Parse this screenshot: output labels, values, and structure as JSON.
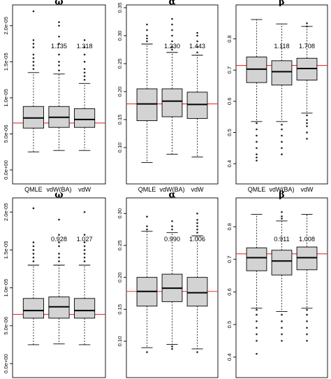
{
  "colors": {
    "box_fill": "#d3d3d3",
    "reference_line": "#e8322c",
    "frame": "#000000"
  },
  "chart_data": [
    {
      "type": "box",
      "title": "ω",
      "reference_line": 6.5e-06,
      "ylim": [
        0,
        2.25e-05
      ],
      "categories": [
        "QMLE",
        "vdW(BA)",
        "vdW"
      ],
      "yticks": [
        0,
        5e-06,
        1e-05,
        1.5e-05,
        2e-05
      ],
      "yticklabels": [
        "0.0e+00",
        "5.0e-06",
        "1.0e-05",
        "1.5e-05",
        "2.0e-05"
      ],
      "ratios": [
        "",
        "1.135",
        "1.318"
      ],
      "boxes": [
        {
          "whisker_low": 2.5e-06,
          "q1": 5.8e-06,
          "median": 7.2e-06,
          "q3": 8.8e-06,
          "whisker_high": 1.35e-05,
          "outliers": [
            1.4e-05,
            1.45e-05,
            1.5e-05,
            1.55e-05,
            1.6e-05,
            1.7e-05,
            1.75e-05,
            1.8e-05,
            2.2e-05
          ]
        },
        {
          "whisker_low": 2.7e-06,
          "q1": 5.9e-06,
          "median": 7.3e-06,
          "q3": 8.8e-06,
          "whisker_high": 1.33e-05,
          "outliers": [
            1.38e-05,
            1.45e-05,
            1.5e-05,
            1.6e-05,
            1.75e-05,
            1.85e-05,
            2e-05,
            2.05e-05
          ]
        },
        {
          "whisker_low": 2.7e-06,
          "q1": 5.9e-06,
          "median": 7e-06,
          "q3": 8.5e-06,
          "whisker_high": 1.2e-05,
          "outliers": [
            1.25e-05,
            1.3e-05,
            1.35e-05,
            1.4e-05,
            1.5e-05,
            1.6e-05,
            1.7e-05,
            1.8e-05
          ]
        }
      ]
    },
    {
      "type": "box",
      "title": "α",
      "reference_line": 0.178,
      "ylim": [
        0.06,
        0.35
      ],
      "categories": [
        "QMLE",
        "vdW(BA)",
        "vdW"
      ],
      "yticks": [
        0.1,
        0.15,
        0.2,
        0.25,
        0.3,
        0.35
      ],
      "yticklabels": [
        "0.10",
        "0.15",
        "0.20",
        "0.25",
        "0.30",
        "0.35"
      ],
      "ratios": [
        "",
        "1.230",
        "1.443"
      ],
      "boxes": [
        {
          "whisker_low": 0.073,
          "q1": 0.148,
          "median": 0.178,
          "q3": 0.205,
          "whisker_high": 0.285,
          "outliers": [
            0.29,
            0.295,
            0.3,
            0.31,
            0.32
          ]
        },
        {
          "whisker_low": 0.088,
          "q1": 0.155,
          "median": 0.183,
          "q3": 0.205,
          "whisker_high": 0.27,
          "outliers": [
            0.275,
            0.28,
            0.29,
            0.3,
            0.31,
            0.32,
            0.33
          ]
        },
        {
          "whisker_low": 0.083,
          "q1": 0.152,
          "median": 0.177,
          "q3": 0.199,
          "whisker_high": 0.265,
          "outliers": [
            0.27,
            0.28,
            0.29,
            0.3,
            0.305
          ]
        }
      ]
    },
    {
      "type": "box",
      "title": "β",
      "reference_line": 0.715,
      "ylim": [
        0.38,
        0.9
      ],
      "categories": [
        "QMLE",
        "vdW(BA)",
        "vdW"
      ],
      "yticks": [
        0.4,
        0.5,
        0.6,
        0.7,
        0.8
      ],
      "yticklabels": [
        "0.4",
        "0.5",
        "0.6",
        "0.7",
        "0.8"
      ],
      "ratios": [
        "",
        "1.118",
        "1.708"
      ],
      "boxes": [
        {
          "whisker_low": 0.535,
          "q1": 0.66,
          "median": 0.703,
          "q3": 0.742,
          "whisker_high": 0.862,
          "outliers": [
            0.53,
            0.51,
            0.49,
            0.47,
            0.45,
            0.43,
            0.42,
            0.41
          ]
        },
        {
          "whisker_low": 0.535,
          "q1": 0.652,
          "median": 0.695,
          "q3": 0.73,
          "whisker_high": 0.848,
          "outliers": [
            0.525,
            0.51,
            0.49,
            0.47,
            0.45,
            0.43
          ]
        },
        {
          "whisker_low": 0.562,
          "q1": 0.668,
          "median": 0.705,
          "q3": 0.738,
          "whisker_high": 0.84,
          "outliers": [
            0.85,
            0.84,
            0.555,
            0.54,
            0.53,
            0.52,
            0.5,
            0.48
          ]
        }
      ]
    },
    {
      "type": "box",
      "title": "ω",
      "reference_line": 6.5e-06,
      "ylim": [
        0,
        2.15e-05
      ],
      "categories": [
        "QMLE",
        "vdW(BA)",
        "vdW"
      ],
      "yticks": [
        0,
        5e-06,
        1e-05,
        1.5e-05,
        2e-05
      ],
      "yticklabels": [
        "0.0e+00",
        "5.0e-06",
        "1.0e-05",
        "1.5e-05",
        "2.0e-05"
      ],
      "ratios": [
        "",
        "0.928",
        "1.027"
      ],
      "boxes": [
        {
          "whisker_low": 2.5e-06,
          "q1": 6e-06,
          "median": 7e-06,
          "q3": 8.6e-06,
          "whisker_high": 1.3e-05,
          "outliers": [
            1.35e-05,
            1.4e-05,
            1.45e-05,
            1.5e-05,
            1.55e-05,
            1.6e-05,
            2.05e-05
          ]
        },
        {
          "whisker_low": 2.6e-06,
          "q1": 6e-06,
          "median": 7.5e-06,
          "q3": 8.8e-06,
          "whisker_high": 1.3e-05,
          "outliers": [
            1.35e-05,
            1.4e-05,
            1.45e-05,
            1.55e-05,
            1.6e-05,
            1.7e-05,
            1.9e-05
          ]
        },
        {
          "whisker_low": 2.5e-06,
          "q1": 6e-06,
          "median": 7e-06,
          "q3": 8.6e-06,
          "whisker_high": 1.3e-05,
          "outliers": [
            1.35e-05,
            1.4e-05,
            1.45e-05,
            1.5e-05,
            1.55e-05,
            1.6e-05,
            1.7e-05,
            2e-05
          ]
        }
      ]
    },
    {
      "type": "box",
      "title": "α",
      "reference_line": 0.178,
      "ylim": [
        0.065,
        0.32
      ],
      "categories": [
        "QMLE",
        "vdW(BA)",
        "vdW"
      ],
      "yticks": [
        0.1,
        0.15,
        0.2,
        0.25,
        0.3
      ],
      "yticklabels": [
        "0.10",
        "0.15",
        "0.20",
        "0.25",
        "0.30"
      ],
      "ratios": [
        "",
        "0.990",
        "1.006"
      ],
      "boxes": [
        {
          "whisker_low": 0.09,
          "q1": 0.155,
          "median": 0.178,
          "q3": 0.2,
          "whisker_high": 0.272,
          "outliers": [
            0.275,
            0.28,
            0.295,
            0.083
          ]
        },
        {
          "whisker_low": 0.095,
          "q1": 0.162,
          "median": 0.183,
          "q3": 0.205,
          "whisker_high": 0.27,
          "outliers": [
            0.275,
            0.28,
            0.288,
            0.092,
            0.088
          ]
        },
        {
          "whisker_low": 0.088,
          "q1": 0.155,
          "median": 0.176,
          "q3": 0.2,
          "whisker_high": 0.265,
          "outliers": [
            0.27,
            0.275,
            0.28,
            0.285,
            0.29,
            0.3,
            0.083
          ]
        }
      ]
    },
    {
      "type": "box",
      "title": "β",
      "reference_line": 0.717,
      "ylim": [
        0.38,
        0.88
      ],
      "categories": [
        "QMLE",
        "vdW(BA)",
        "vdW"
      ],
      "yticks": [
        0.4,
        0.5,
        0.6,
        0.7,
        0.8
      ],
      "yticklabels": [
        "0.4",
        "0.5",
        "0.6",
        "0.7",
        "0.8"
      ],
      "ratios": [
        "",
        "0.911",
        "1.008"
      ],
      "boxes": [
        {
          "whisker_low": 0.55,
          "q1": 0.665,
          "median": 0.705,
          "q3": 0.735,
          "whisker_high": 0.838,
          "outliers": [
            0.545,
            0.53,
            0.51,
            0.49,
            0.47,
            0.45,
            0.41
          ]
        },
        {
          "whisker_low": 0.54,
          "q1": 0.652,
          "median": 0.695,
          "q3": 0.728,
          "whisker_high": 0.818,
          "outliers": [
            0.825,
            0.832,
            0.845,
            0.53,
            0.51,
            0.49,
            0.47,
            0.45
          ]
        },
        {
          "whisker_low": 0.55,
          "q1": 0.668,
          "median": 0.705,
          "q3": 0.738,
          "whisker_high": 0.838,
          "outliers": [
            0.545,
            0.53,
            0.51,
            0.49,
            0.47,
            0.45
          ]
        }
      ]
    }
  ]
}
